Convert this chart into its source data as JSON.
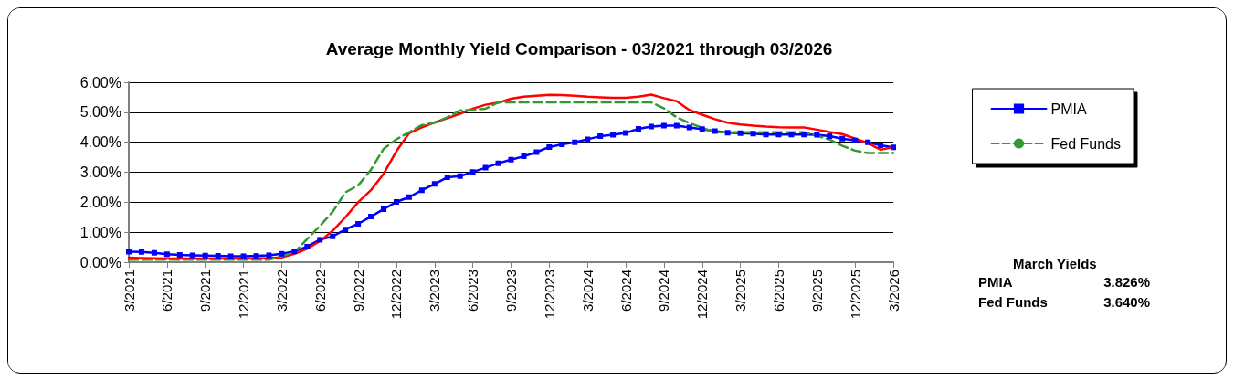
{
  "chart_data": {
    "type": "line",
    "title": "Average Monthly Yield Comparison - 03/2021 through 03/2026",
    "categories": [
      "3/2021",
      null,
      null,
      "6/2021",
      null,
      null,
      "9/2021",
      null,
      null,
      "12/2021",
      null,
      null,
      "3/2022",
      null,
      null,
      "6/2022",
      null,
      null,
      "9/2022",
      null,
      null,
      "12/2022",
      null,
      null,
      "3/2023",
      null,
      null,
      "6/2023",
      null,
      null,
      "9/2023",
      null,
      null,
      "12/2023",
      null,
      null,
      "3/2024",
      null,
      null,
      "6/2024",
      null,
      null,
      "9/2024",
      null,
      null,
      "12/2024",
      null,
      null,
      "3/2025",
      null,
      null,
      "6/2025",
      null,
      null,
      "9/2025",
      null,
      null,
      "12/2025",
      null,
      null,
      "3/2026"
    ],
    "series": [
      {
        "name": "PMIA",
        "color": "#0000ff",
        "marker": "square",
        "line_style": "solid",
        "values": [
          0.35,
          0.34,
          0.31,
          0.27,
          0.24,
          0.23,
          0.22,
          0.21,
          0.2,
          0.2,
          0.21,
          0.23,
          0.28,
          0.36,
          0.52,
          0.75,
          0.86,
          1.09,
          1.28,
          1.52,
          1.77,
          2.01,
          2.17,
          2.4,
          2.61,
          2.83,
          2.87,
          3.01,
          3.15,
          3.3,
          3.42,
          3.53,
          3.67,
          3.84,
          3.93,
          4.0,
          4.1,
          4.2,
          4.25,
          4.31,
          4.45,
          4.52,
          4.55,
          4.55,
          4.49,
          4.44,
          4.37,
          4.32,
          4.3,
          4.29,
          4.26,
          4.26,
          4.26,
          4.26,
          4.25,
          4.2,
          4.12,
          4.06,
          4.0,
          3.9,
          3.83
        ]
      },
      {
        "color": "#ff0000",
        "marker": "none",
        "line_style": "solid",
        "values": [
          0.15,
          0.14,
          0.13,
          0.12,
          0.12,
          0.12,
          0.12,
          0.12,
          0.12,
          0.12,
          0.13,
          0.14,
          0.16,
          0.28,
          0.45,
          0.7,
          1.05,
          1.5,
          2.0,
          2.4,
          2.95,
          3.7,
          4.3,
          4.5,
          4.66,
          4.8,
          4.95,
          5.12,
          5.25,
          5.32,
          5.45,
          5.52,
          5.55,
          5.58,
          5.57,
          5.55,
          5.52,
          5.5,
          5.48,
          5.48,
          5.52,
          5.59,
          5.47,
          5.37,
          5.07,
          4.92,
          4.77,
          4.65,
          4.59,
          4.55,
          4.52,
          4.5,
          4.49,
          4.49,
          4.42,
          4.34,
          4.27,
          4.12,
          3.97,
          3.75,
          3.84
        ]
      },
      {
        "name": "Fed Funds",
        "color": "#339933",
        "marker": "none",
        "line_style": "dashed",
        "values": [
          0.08,
          0.08,
          0.08,
          0.08,
          0.08,
          0.08,
          0.08,
          0.08,
          0.08,
          0.08,
          0.08,
          0.08,
          0.2,
          0.33,
          0.77,
          1.21,
          1.68,
          2.33,
          2.56,
          3.08,
          3.78,
          4.1,
          4.33,
          4.57,
          4.65,
          4.83,
          5.06,
          5.08,
          5.12,
          5.33,
          5.33,
          5.33,
          5.33,
          5.33,
          5.33,
          5.33,
          5.33,
          5.33,
          5.33,
          5.33,
          5.33,
          5.33,
          5.13,
          4.83,
          4.64,
          4.48,
          4.33,
          4.33,
          4.33,
          4.33,
          4.33,
          4.33,
          4.33,
          4.33,
          4.22,
          4.09,
          3.88,
          3.72,
          3.64,
          3.64,
          3.64
        ]
      }
    ],
    "ylim": [
      0,
      6
    ],
    "yticks": [
      {
        "value": 0,
        "label": "0.00%"
      },
      {
        "value": 1,
        "label": "1.00%"
      },
      {
        "value": 2,
        "label": "2.00%"
      },
      {
        "value": 3,
        "label": "3.00%"
      },
      {
        "value": 4,
        "label": "4.00%"
      },
      {
        "value": 5,
        "label": "5.00%"
      },
      {
        "value": 6,
        "label": "6.00%"
      }
    ],
    "grid": "y",
    "legend": "right",
    "annotations": [
      "March Yields",
      "PMIA",
      "3.826%",
      "Fed Funds",
      "3.640%"
    ]
  }
}
